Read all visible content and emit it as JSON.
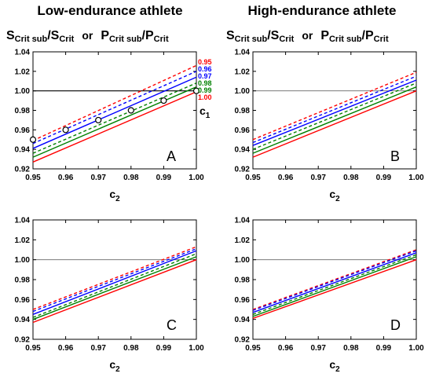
{
  "titles": {
    "left": "Low-endurance athlete",
    "right": "High-endurance athlete"
  },
  "ylabel": {
    "s_main": "S",
    "s_sub": "Crit sub",
    "s_sep": "/S",
    "s_sub2": "Crit",
    "or": "or",
    "p_main": "P",
    "p_sub": "Crit sub",
    "p_sep": "/P",
    "p_sub2": "Crit"
  },
  "colors": {
    "red": "#ff0000",
    "blue": "#0000ff",
    "green": "#008000",
    "reference": "#000000"
  },
  "chart_data": [
    {
      "panel": "A",
      "type": "line",
      "xlabel_main": "c",
      "xlabel_sub": "2",
      "xlim": [
        0.95,
        1.0
      ],
      "ylim": [
        0.92,
        1.04
      ],
      "xticks": [
        "0.95",
        "0.96",
        "0.97",
        "0.98",
        "0.99",
        "1.00"
      ],
      "yticks": [
        "0.92",
        "0.94",
        "0.96",
        "0.98",
        "1.00",
        "1.02",
        "1.04"
      ],
      "reference_y": 1.0,
      "legend_title_main": "c",
      "legend_title_sub": "1",
      "legend_labels": [
        "0.95",
        "0.96",
        "0.97",
        "0.98",
        "0.99",
        "1.00"
      ],
      "series": [
        {
          "name": "0.95",
          "color": "red",
          "dash": true,
          "x": [
            0.95,
            1.0
          ],
          "y": [
            0.949,
            1.026
          ]
        },
        {
          "name": "0.96",
          "color": "blue",
          "dash": true,
          "x": [
            0.95,
            1.0
          ],
          "y": [
            0.946,
            1.02
          ]
        },
        {
          "name": "0.97",
          "color": "blue",
          "dash": false,
          "x": [
            0.95,
            1.0
          ],
          "y": [
            0.941,
            1.014
          ]
        },
        {
          "name": "0.98",
          "color": "green",
          "dash": true,
          "x": [
            0.95,
            1.0
          ],
          "y": [
            0.936,
            1.008
          ]
        },
        {
          "name": "0.99",
          "color": "green",
          "dash": false,
          "x": [
            0.95,
            1.0
          ],
          "y": [
            0.932,
            1.004
          ]
        },
        {
          "name": "1.00",
          "color": "red",
          "dash": false,
          "x": [
            0.95,
            1.0
          ],
          "y": [
            0.927,
            0.999
          ]
        }
      ],
      "markers": {
        "x": [
          0.95,
          0.96,
          0.97,
          0.98,
          0.99,
          1.0
        ],
        "y": [
          0.95,
          0.96,
          0.97,
          0.98,
          0.99,
          1.0
        ]
      }
    },
    {
      "panel": "B",
      "type": "line",
      "xlabel_main": "c",
      "xlabel_sub": "2",
      "xlim": [
        0.95,
        1.0
      ],
      "ylim": [
        0.92,
        1.04
      ],
      "xticks": [
        "0.95",
        "0.96",
        "0.97",
        "0.98",
        "0.99",
        "1.00"
      ],
      "yticks": [
        "0.92",
        "0.94",
        "0.96",
        "0.98",
        "1.00",
        "1.02",
        "1.04"
      ],
      "reference_y": 1.0,
      "series": [
        {
          "name": "0.95",
          "color": "red",
          "dash": true,
          "x": [
            0.95,
            1.0
          ],
          "y": [
            0.95,
            1.019
          ]
        },
        {
          "name": "0.96",
          "color": "blue",
          "dash": true,
          "x": [
            0.95,
            1.0
          ],
          "y": [
            0.947,
            1.015
          ]
        },
        {
          "name": "0.97",
          "color": "blue",
          "dash": false,
          "x": [
            0.95,
            1.0
          ],
          "y": [
            0.944,
            1.011
          ]
        },
        {
          "name": "0.98",
          "color": "green",
          "dash": true,
          "x": [
            0.95,
            1.0
          ],
          "y": [
            0.94,
            1.008
          ]
        },
        {
          "name": "0.99",
          "color": "green",
          "dash": false,
          "x": [
            0.95,
            1.0
          ],
          "y": [
            0.936,
            1.004
          ]
        },
        {
          "name": "1.00",
          "color": "red",
          "dash": false,
          "x": [
            0.95,
            1.0
          ],
          "y": [
            0.932,
            1.0
          ]
        }
      ]
    },
    {
      "panel": "C",
      "type": "line",
      "xlabel_main": "c",
      "xlabel_sub": "2",
      "xlim": [
        0.95,
        1.0
      ],
      "ylim": [
        0.92,
        1.04
      ],
      "xticks": [
        "0.95",
        "0.96",
        "0.97",
        "0.98",
        "0.99",
        "1.00"
      ],
      "yticks": [
        "0.92",
        "0.94",
        "0.96",
        "0.98",
        "1.00",
        "1.02",
        "1.04"
      ],
      "reference_y": 1.0,
      "series": [
        {
          "name": "0.95",
          "color": "red",
          "dash": true,
          "x": [
            0.95,
            1.0
          ],
          "y": [
            0.95,
            1.013
          ]
        },
        {
          "name": "0.96",
          "color": "blue",
          "dash": true,
          "x": [
            0.95,
            1.0
          ],
          "y": [
            0.948,
            1.011
          ]
        },
        {
          "name": "0.97",
          "color": "blue",
          "dash": false,
          "x": [
            0.95,
            1.0
          ],
          "y": [
            0.945,
            1.009
          ]
        },
        {
          "name": "0.98",
          "color": "green",
          "dash": true,
          "x": [
            0.95,
            1.0
          ],
          "y": [
            0.942,
            1.006
          ]
        },
        {
          "name": "0.99",
          "color": "green",
          "dash": false,
          "x": [
            0.95,
            1.0
          ],
          "y": [
            0.94,
            1.003
          ]
        },
        {
          "name": "1.00",
          "color": "red",
          "dash": false,
          "x": [
            0.95,
            1.0
          ],
          "y": [
            0.937,
            1.0
          ]
        }
      ]
    },
    {
      "panel": "D",
      "type": "line",
      "xlabel_main": "c",
      "xlabel_sub": "2",
      "xlim": [
        0.95,
        1.0
      ],
      "ylim": [
        0.92,
        1.04
      ],
      "xticks": [
        "0.95",
        "0.96",
        "0.97",
        "0.98",
        "0.99",
        "1.00"
      ],
      "yticks": [
        "0.92",
        "0.94",
        "0.96",
        "0.98",
        "1.00",
        "1.02",
        "1.04"
      ],
      "reference_y": 1.0,
      "series": [
        {
          "name": "0.95",
          "color": "red",
          "dash": true,
          "x": [
            0.95,
            1.0
          ],
          "y": [
            0.95,
            1.01
          ]
        },
        {
          "name": "0.96",
          "color": "blue",
          "dash": true,
          "x": [
            0.95,
            1.0
          ],
          "y": [
            0.949,
            1.009
          ]
        },
        {
          "name": "0.97",
          "color": "blue",
          "dash": false,
          "x": [
            0.95,
            1.0
          ],
          "y": [
            0.947,
            1.007
          ]
        },
        {
          "name": "0.98",
          "color": "green",
          "dash": true,
          "x": [
            0.95,
            1.0
          ],
          "y": [
            0.945,
            1.005
          ]
        },
        {
          "name": "0.99",
          "color": "green",
          "dash": false,
          "x": [
            0.95,
            1.0
          ],
          "y": [
            0.943,
            1.003
          ]
        },
        {
          "name": "1.00",
          "color": "red",
          "dash": false,
          "x": [
            0.95,
            1.0
          ],
          "y": [
            0.941,
            1.0
          ]
        }
      ]
    }
  ]
}
